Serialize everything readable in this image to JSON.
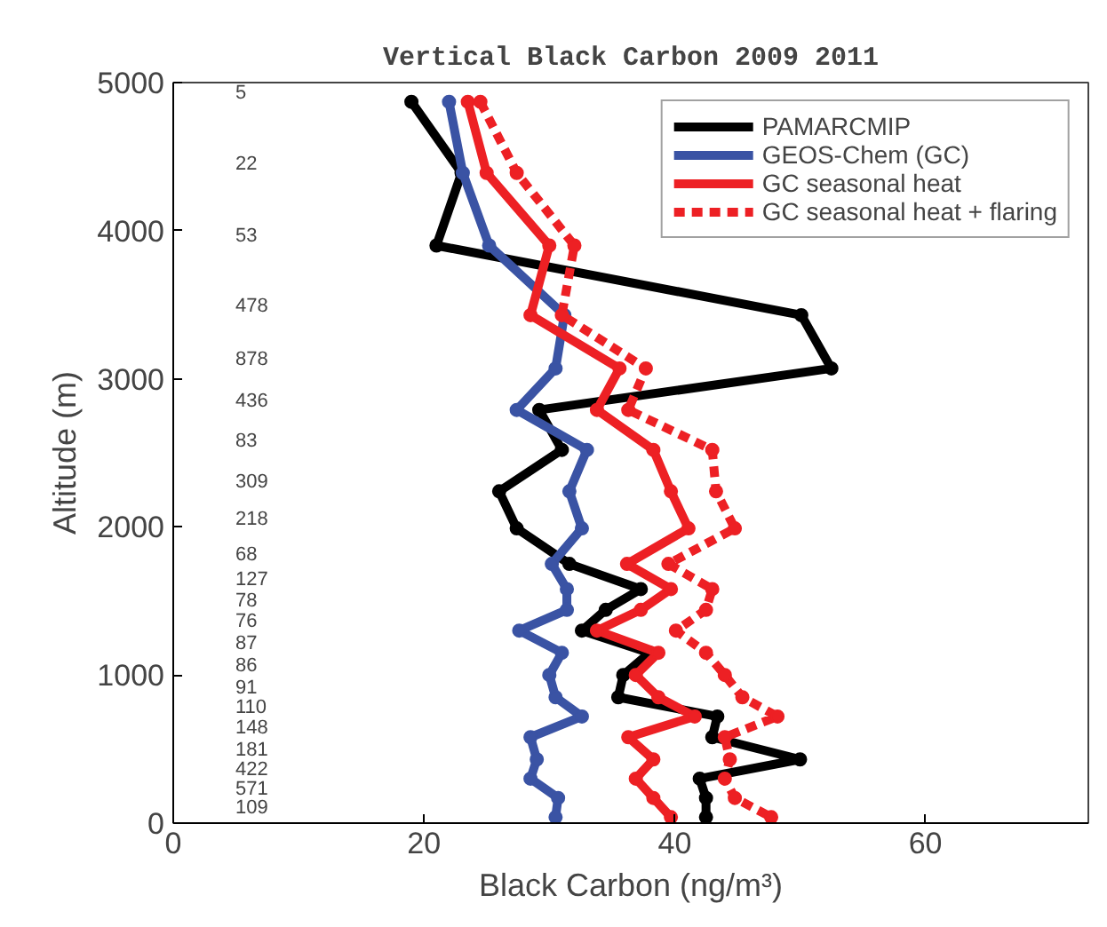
{
  "chart_data": {
    "type": "line",
    "title": "Vertical Black Carbon 2009 2011",
    "xlabel": "Black Carbon (ng/m³)",
    "ylabel": "Altitude (m)",
    "xlim": [
      0,
      73
    ],
    "ylim": [
      0,
      5000
    ],
    "xticks": [
      0,
      20,
      40,
      60
    ],
    "yticks": [
      0,
      1000,
      2000,
      3000,
      4000,
      5000
    ],
    "grid": false,
    "legend": "top right",
    "marker": "circle",
    "series": [
      {
        "name": "PAMARCMIP",
        "color": "#000000",
        "line_style": "solid",
        "x": [
          19,
          23,
          21,
          50.1,
          52.5,
          29.2,
          31,
          26,
          27.4,
          31.6,
          37.3,
          34.5,
          32.6,
          38,
          35.9,
          35.5,
          43.4,
          43,
          50,
          42,
          42.5,
          42.5
        ],
        "values": [
          4870,
          4390,
          3900,
          3430,
          3070,
          2790,
          2520,
          2240,
          1990,
          1750,
          1580,
          1440,
          1300,
          1150,
          1000,
          850,
          720,
          580,
          430,
          300,
          170,
          40
        ]
      },
      {
        "name": "GEOS-Chem (GC)",
        "color": "#3a53a4",
        "line_style": "solid",
        "x": [
          22,
          23.1,
          25.2,
          31.2,
          30.5,
          27.4,
          33,
          31.6,
          32.6,
          30.2,
          31.4,
          31.4,
          27.6,
          31,
          30,
          30.5,
          32.6,
          28.5,
          29,
          28.5,
          30.7,
          30.5
        ],
        "values": [
          4870,
          4390,
          3900,
          3430,
          3070,
          2790,
          2520,
          2240,
          1990,
          1750,
          1580,
          1440,
          1300,
          1150,
          1000,
          850,
          720,
          580,
          430,
          300,
          170,
          40
        ]
      },
      {
        "name": "GC seasonal heat",
        "color": "#ed2024",
        "line_style": "solid",
        "x": [
          23.5,
          25,
          30,
          28.5,
          35.6,
          33.8,
          38.3,
          39.7,
          41.1,
          36.2,
          39.7,
          37.3,
          33.8,
          38.7,
          36.9,
          38.7,
          41.6,
          36.3,
          38.3,
          36.9,
          38.3,
          39.7
        ],
        "values": [
          4870,
          4390,
          3900,
          3430,
          3070,
          2790,
          2520,
          2240,
          1990,
          1750,
          1580,
          1440,
          1300,
          1150,
          1000,
          850,
          720,
          580,
          430,
          300,
          170,
          40
        ]
      },
      {
        "name": "GC seasonal heat + flaring",
        "color": "#ed2024",
        "line_style": "dashed",
        "x": [
          24.5,
          27.4,
          32,
          31,
          37.7,
          36.3,
          43,
          43.3,
          44.8,
          39.5,
          43,
          42.5,
          40.1,
          42.5,
          44,
          45.4,
          48.2,
          44,
          44.4,
          44,
          44.8,
          47.7
        ],
        "values": [
          4870,
          4390,
          3900,
          3430,
          3070,
          2790,
          2520,
          2240,
          1990,
          1750,
          1580,
          1440,
          1300,
          1150,
          1000,
          850,
          720,
          580,
          430,
          300,
          170,
          40
        ]
      }
    ],
    "annotations": [
      "5",
      "22",
      "53",
      "478",
      "878",
      "436",
      "83",
      "309",
      "218",
      "68",
      "127",
      "78",
      "76",
      "87",
      "86",
      "91",
      "110",
      "148",
      "181",
      "422",
      "571",
      "109"
    ]
  }
}
